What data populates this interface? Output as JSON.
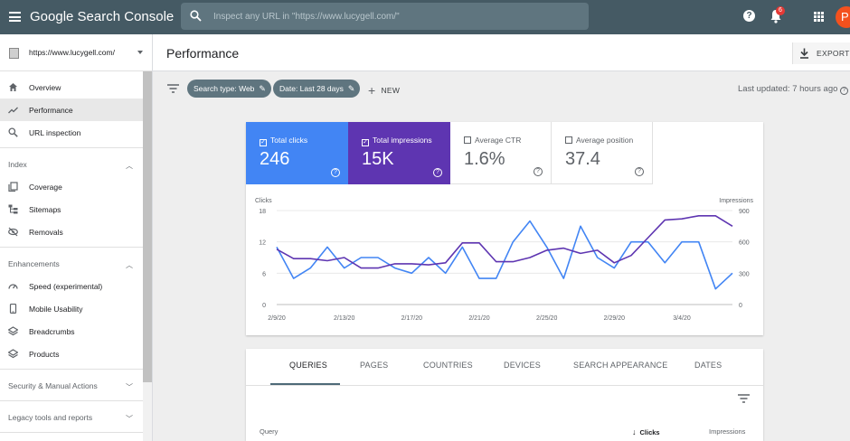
{
  "topbar": {
    "title": "Google Search Console",
    "search_placeholder": "Inspect any URL in \"https://www.lucygell.com/\"",
    "help_label": "?",
    "notification_count": "6",
    "avatar_letter": "P"
  },
  "sidebar": {
    "property": "https://www.lucygell.com/",
    "items": [
      {
        "label": "Overview",
        "icon": "home-icon",
        "active": false
      },
      {
        "label": "Performance",
        "icon": "trending-up-icon",
        "active": true
      },
      {
        "label": "URL inspection",
        "icon": "search-icon",
        "active": false
      }
    ],
    "index": {
      "title": "Index",
      "items": [
        {
          "label": "Coverage",
          "icon": "copy-icon"
        },
        {
          "label": "Sitemaps",
          "icon": "sitemap-icon"
        },
        {
          "label": "Removals",
          "icon": "visibility-off-icon"
        }
      ]
    },
    "enhancements": {
      "title": "Enhancements",
      "items": [
        {
          "label": "Speed (experimental)",
          "icon": "speed-icon"
        },
        {
          "label": "Mobile Usability",
          "icon": "phone-icon"
        },
        {
          "label": "Breadcrumbs",
          "icon": "layers-icon"
        },
        {
          "label": "Products",
          "icon": "layers-icon"
        }
      ]
    },
    "security": "Security & Manual Actions",
    "legacy": "Legacy tools and reports"
  },
  "header": {
    "title": "Performance",
    "export_label": "EXPORT"
  },
  "filters": {
    "chips": [
      "Search type: Web",
      "Date: Last 28 days"
    ],
    "new_label": "NEW",
    "last_updated": "Last updated: 7 hours ago"
  },
  "metrics": [
    {
      "label": "Total clicks",
      "value": "246",
      "checked": true,
      "color": "#4285f4"
    },
    {
      "label": "Total impressions",
      "value": "15K",
      "checked": true,
      "color": "#5e35b1"
    },
    {
      "label": "Average CTR",
      "value": "1.6%",
      "checked": false
    },
    {
      "label": "Average position",
      "value": "37.4",
      "checked": false
    }
  ],
  "chart_data": {
    "type": "line",
    "left_axis_label": "Clicks",
    "right_axis_label": "Impressions",
    "left_ylim": [
      0,
      18
    ],
    "right_ylim": [
      0,
      900
    ],
    "left_ticks": [
      "18",
      "12",
      "6",
      "0"
    ],
    "right_ticks": [
      "900",
      "600",
      "300",
      "0"
    ],
    "x_tick_labels": [
      "2/9/20",
      "2/13/20",
      "2/17/20",
      "2/21/20",
      "2/25/20",
      "2/29/20",
      "3/4/20"
    ],
    "x_tick_index": [
      0,
      4,
      8,
      12,
      16,
      20,
      24
    ],
    "grid": true,
    "series": [
      {
        "color": "#4285f4",
        "axis": "left",
        "values": [
          11,
          5,
          7,
          11,
          7,
          9,
          9,
          7,
          6,
          9,
          6,
          11,
          5,
          5,
          12,
          16,
          11,
          5,
          15,
          9,
          7,
          12,
          12,
          8,
          12,
          12,
          3,
          6
        ]
      },
      {
        "color": "#5e35b1",
        "axis": "right",
        "values": [
          530,
          440,
          440,
          420,
          450,
          350,
          350,
          390,
          390,
          380,
          400,
          590,
          590,
          410,
          410,
          450,
          520,
          540,
          490,
          520,
          400,
          470,
          640,
          810,
          820,
          850,
          850,
          750
        ]
      }
    ]
  },
  "table": {
    "tabs": [
      "QUERIES",
      "PAGES",
      "COUNTRIES",
      "DEVICES",
      "SEARCH APPEARANCE",
      "DATES"
    ],
    "columns": [
      "Query",
      "Clicks",
      "Impressions"
    ]
  }
}
